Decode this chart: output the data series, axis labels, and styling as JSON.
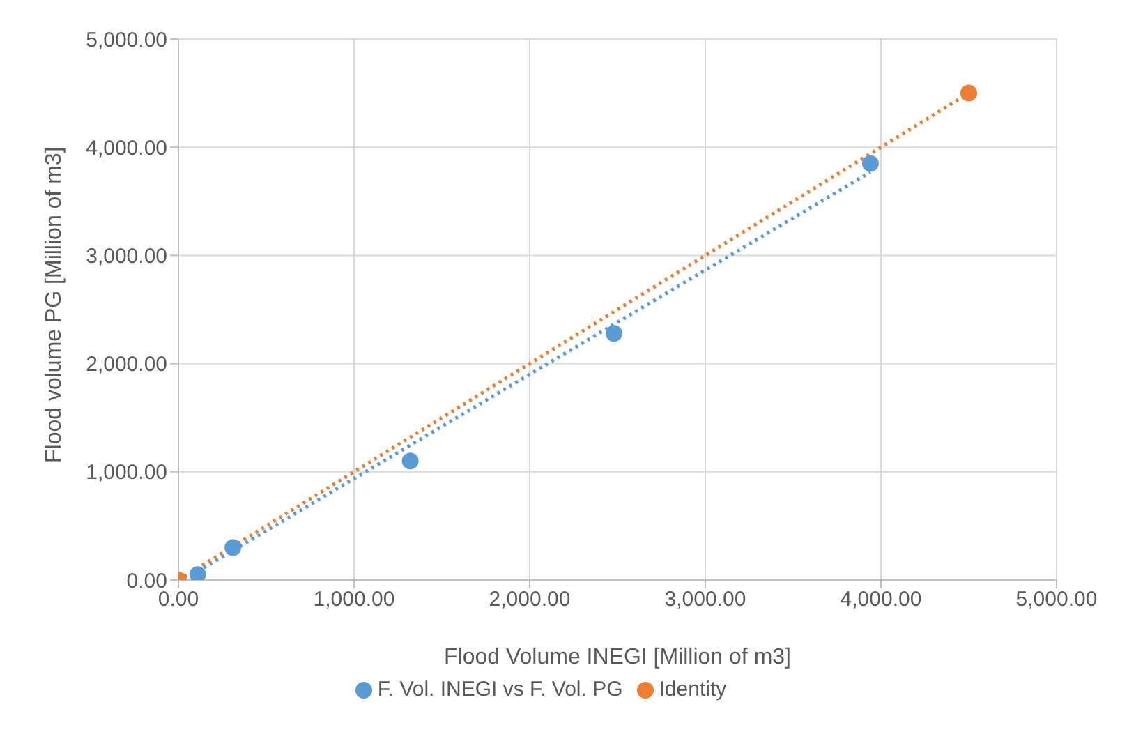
{
  "chart_data": {
    "type": "scatter",
    "xlabel": "Flood Volume  INEGI  [Million of m3]",
    "ylabel": "Flood volume PG [Million of m3]",
    "xlim": [
      0,
      5000
    ],
    "ylim": [
      0,
      5000
    ],
    "xticks": [
      {
        "value": 0,
        "label": "0.00"
      },
      {
        "value": 1000,
        "label": "1,000.00"
      },
      {
        "value": 2000,
        "label": "2,000.00"
      },
      {
        "value": 3000,
        "label": "3,000.00"
      },
      {
        "value": 4000,
        "label": "4,000.00"
      },
      {
        "value": 5000,
        "label": "5,000.00"
      }
    ],
    "yticks": [
      {
        "value": 0,
        "label": "0.00"
      },
      {
        "value": 1000,
        "label": "1,000.00"
      },
      {
        "value": 2000,
        "label": "2,000.00"
      },
      {
        "value": 3000,
        "label": "3,000.00"
      },
      {
        "value": 4000,
        "label": "4,000.00"
      },
      {
        "value": 5000,
        "label": "5,000.00"
      }
    ],
    "grid": true,
    "legend": "bottom",
    "marker": "circle",
    "series": [
      {
        "type": "line",
        "color": "#5b9bd5",
        "x": [
          110,
          3940
        ],
        "values": [
          80,
          3770
        ],
        "line_style": "dotted",
        "marker": "none"
      },
      {
        "type": "line",
        "color": "#ed7d31",
        "x": [
          0,
          4500
        ],
        "values": [
          0,
          4500
        ],
        "line_style": "dotted",
        "marker": "none"
      },
      {
        "name": "F. Vol. INEGI vs F. Vol. PG",
        "color": "#5b9bd5",
        "x": [
          110,
          310,
          1320,
          2480,
          3940
        ],
        "values": [
          50,
          300,
          1100,
          2280,
          3850
        ]
      },
      {
        "name": "Identity",
        "color": "#ed7d31",
        "x": [
          0,
          4500
        ],
        "values": [
          0,
          4500
        ]
      }
    ]
  }
}
